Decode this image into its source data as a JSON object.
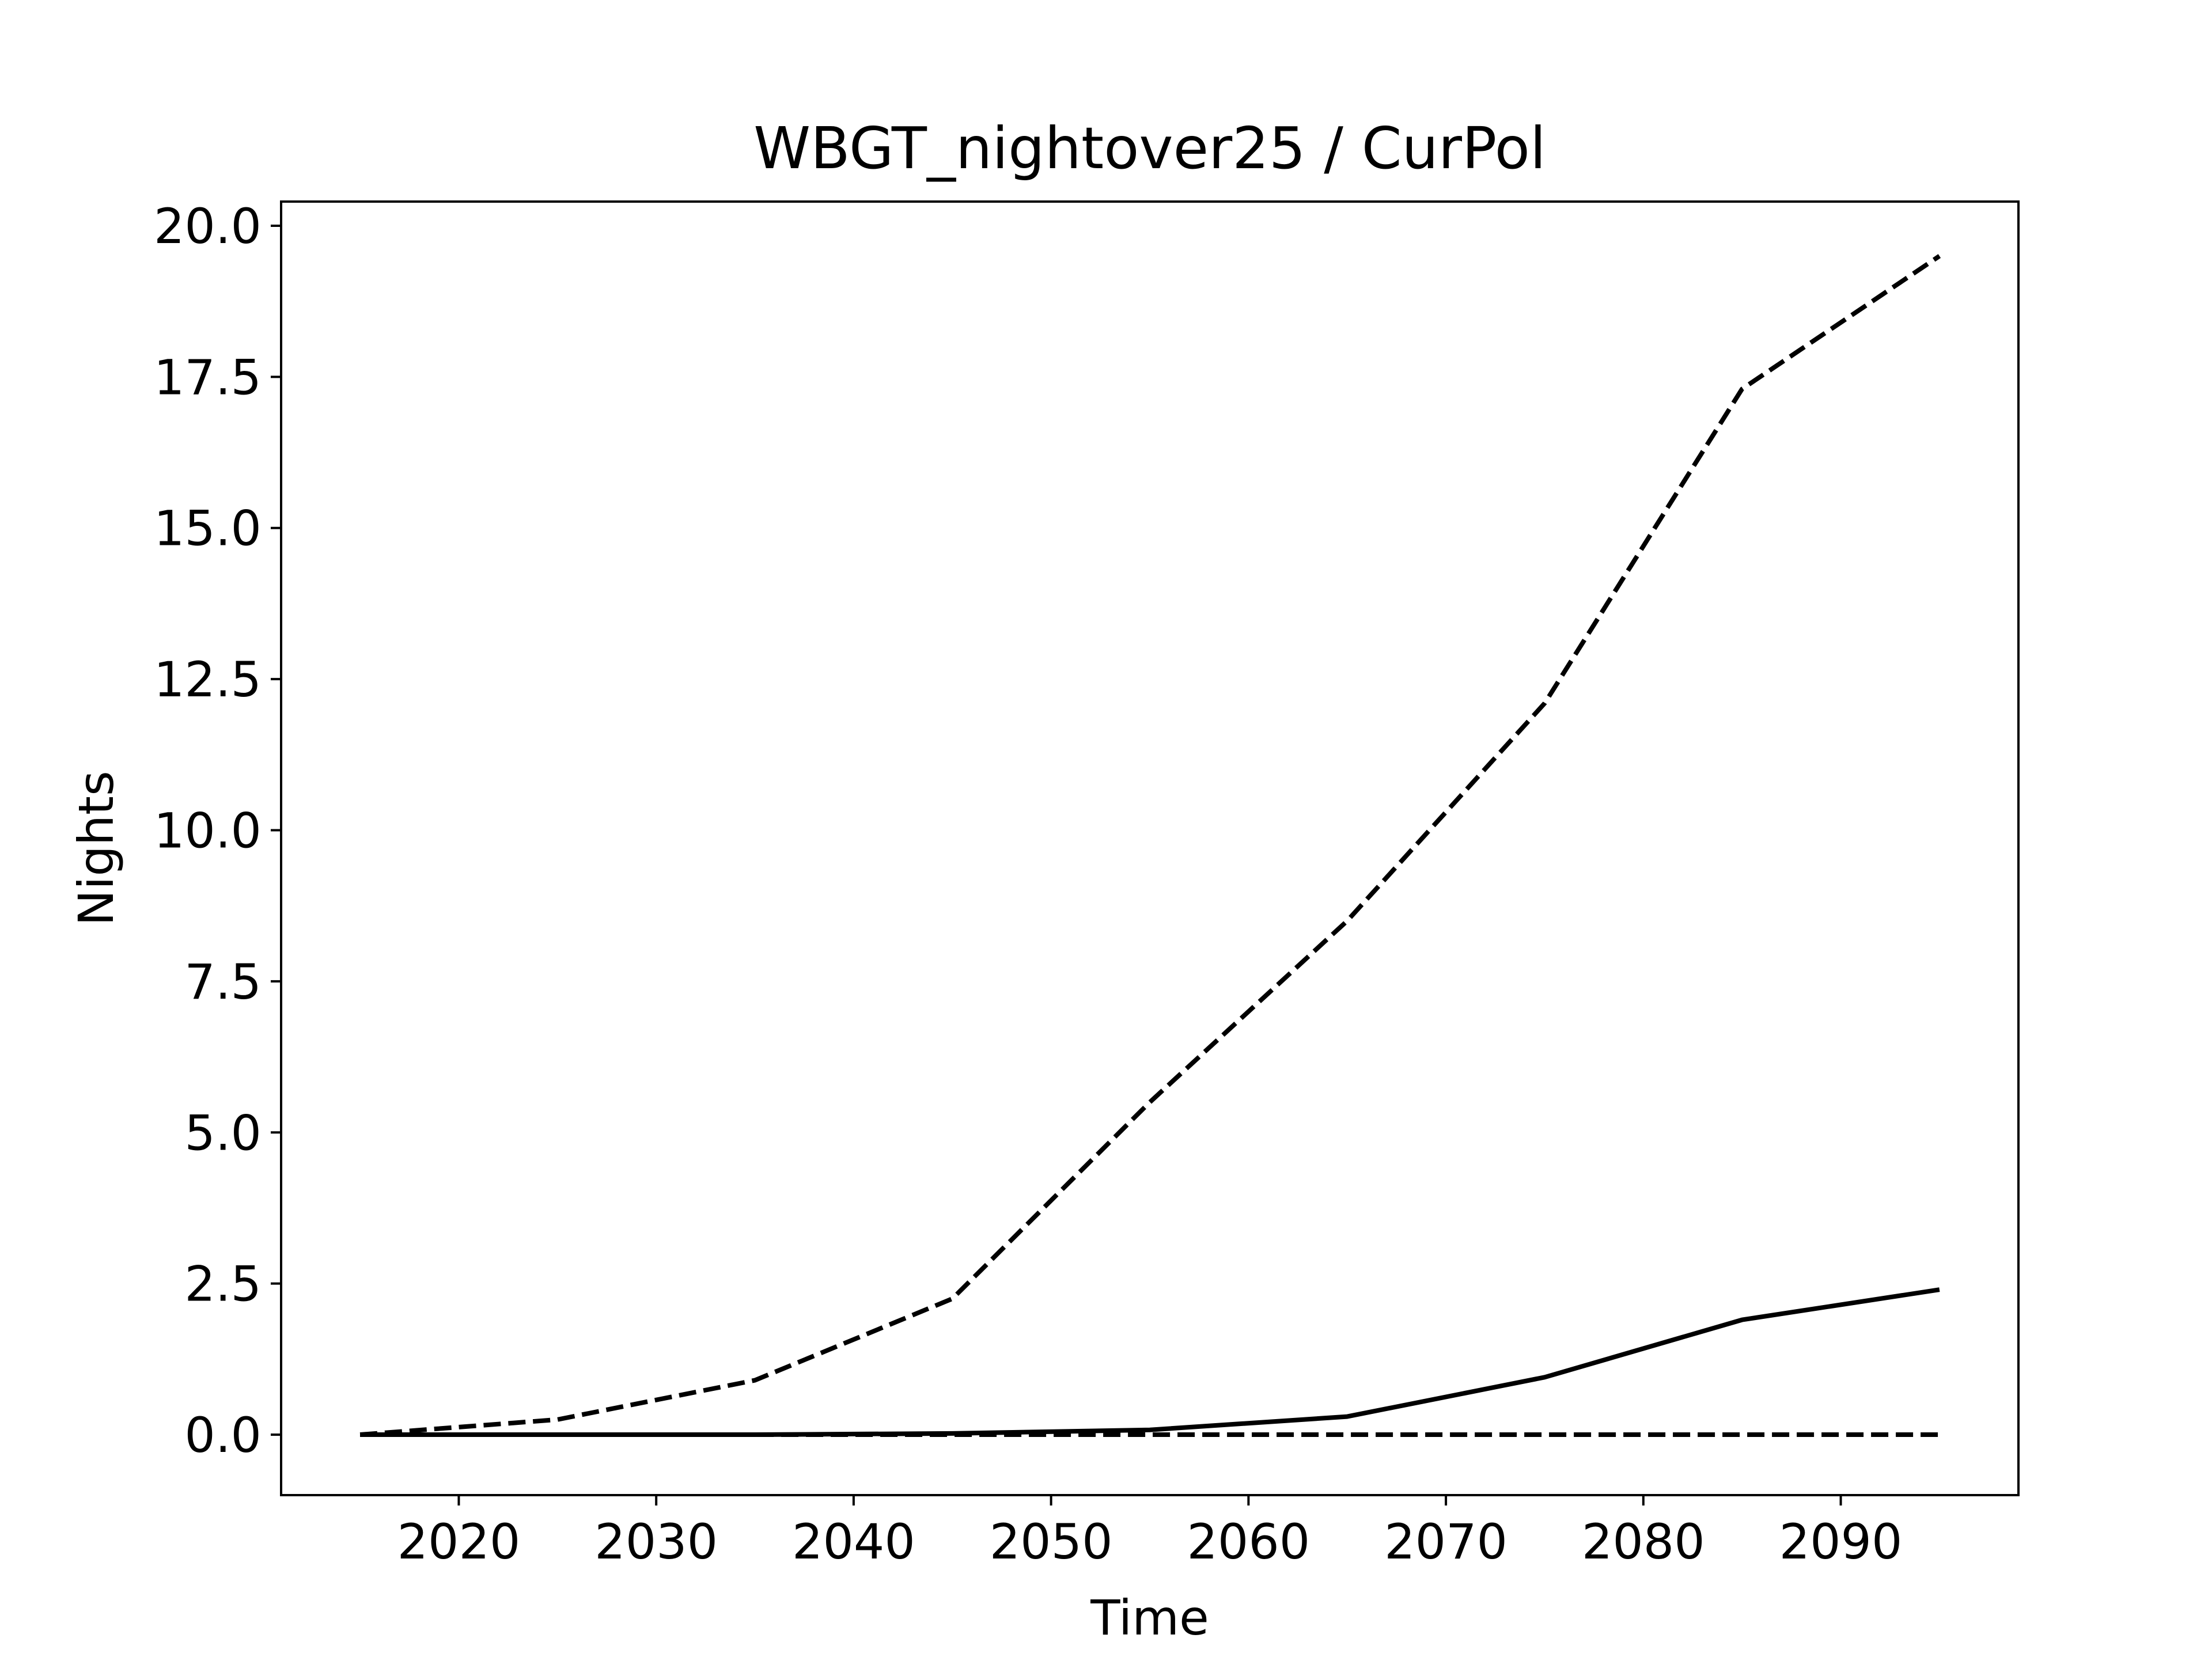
{
  "chart_data": {
    "type": "line",
    "title": "WBGT_nightover25 / CurPol",
    "xlabel": "Time",
    "ylabel": "Nights",
    "xlim": [
      2011,
      2099
    ],
    "ylim": [
      -1.0,
      20.4
    ],
    "xticks": [
      2020,
      2030,
      2040,
      2050,
      2060,
      2070,
      2080,
      2090
    ],
    "xtick_labels": [
      "2020",
      "2030",
      "2040",
      "2050",
      "2060",
      "2070",
      "2080",
      "2090"
    ],
    "yticks": [
      0.0,
      2.5,
      5.0,
      7.5,
      10.0,
      12.5,
      15.0,
      17.5,
      20.0
    ],
    "ytick_labels": [
      "0.0",
      "2.5",
      "5.0",
      "7.5",
      "10.0",
      "12.5",
      "15.0",
      "17.5",
      "20.0"
    ],
    "grid": false,
    "legend": null,
    "color": "#000000",
    "x": [
      2015,
      2025,
      2035,
      2045,
      2055,
      2065,
      2075,
      2085,
      2095
    ],
    "series": [
      {
        "style": "dashed",
        "values": [
          0.0,
          0.25,
          0.9,
          2.25,
          5.5,
          8.5,
          12.1,
          17.3,
          19.5
        ]
      },
      {
        "style": "solid",
        "values": [
          0.0,
          0.0,
          0.0,
          0.02,
          0.08,
          0.3,
          0.95,
          1.9,
          2.4
        ]
      },
      {
        "style": "dashed",
        "values": [
          0.0,
          0.0,
          0.0,
          0.0,
          0.0,
          0.0,
          0.0,
          0.0,
          0.0
        ]
      }
    ]
  }
}
